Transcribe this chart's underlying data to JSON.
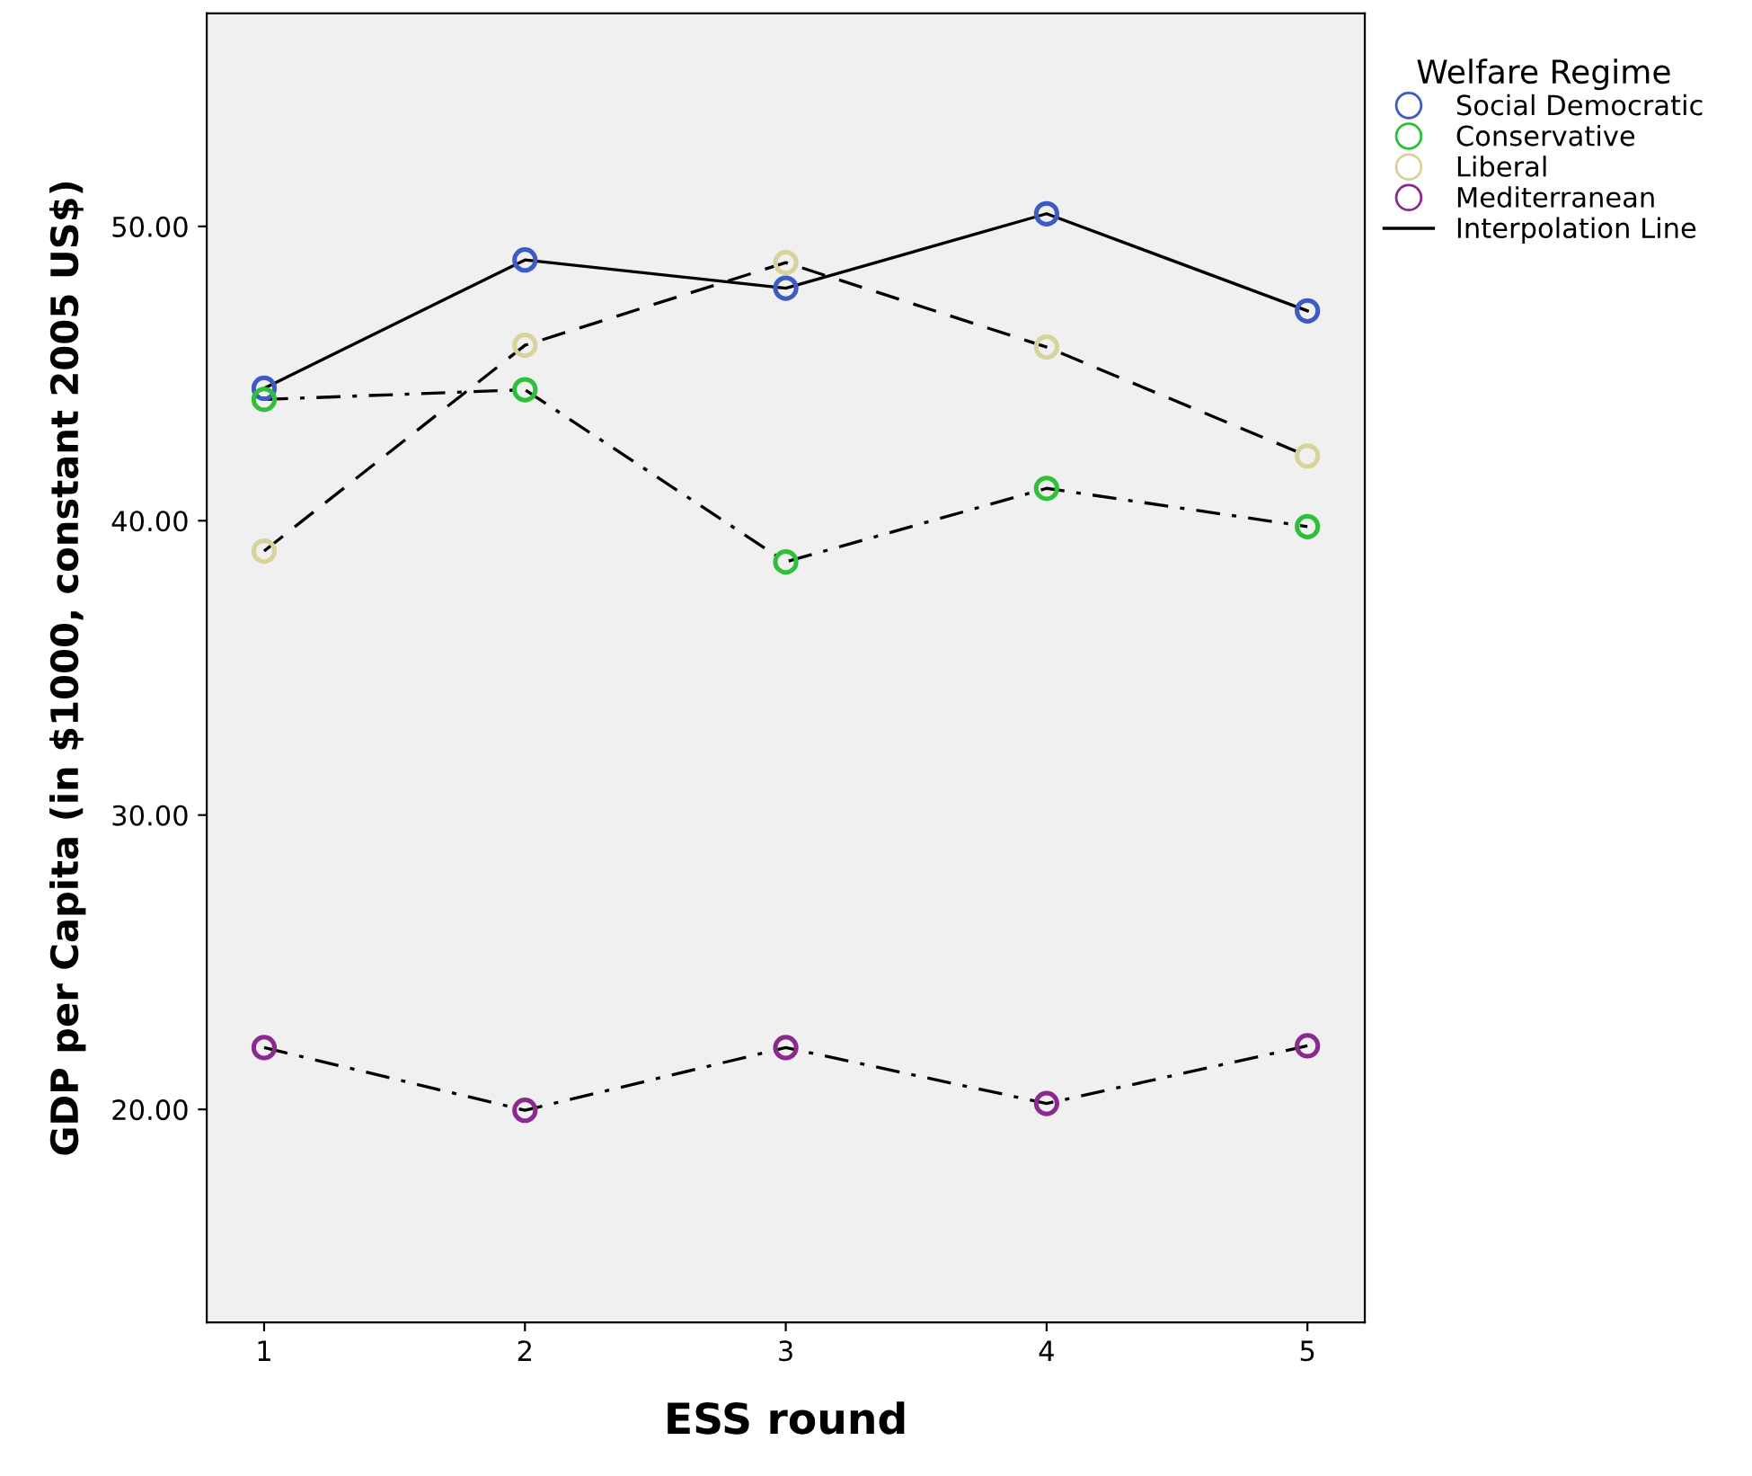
{
  "chart_data": {
    "type": "line",
    "xlabel": "ESS round",
    "ylabel": "GDP per Capita (in $1000, constant 2005 US$)",
    "legend_title": "Welfare Regime",
    "x": [
      1,
      2,
      3,
      4,
      5
    ],
    "series": [
      {
        "name": "Social Democratic",
        "color": "#3d5bc4",
        "line_style": "solid",
        "values": [
          44.5,
          48.86,
          47.9,
          50.43,
          47.13
        ]
      },
      {
        "name": "Conservative",
        "color": "#2fbf3a",
        "line_style": "dashdot",
        "values": [
          44.12,
          44.45,
          38.6,
          41.1,
          39.8
        ]
      },
      {
        "name": "Liberal",
        "color": "#d8d39a",
        "line_style": "dashed",
        "values": [
          38.97,
          45.96,
          48.77,
          45.9,
          42.2
        ]
      },
      {
        "name": "Mediterranean",
        "color": "#8b2a8e",
        "line_style": "dashdot",
        "values": [
          22.1,
          19.97,
          22.1,
          20.2,
          22.16
        ]
      }
    ],
    "annotations": [
      "Interpolation Line"
    ],
    "marker": "circle",
    "legend": "top right",
    "grid": false,
    "xlim": [
      0.78,
      5.22
    ],
    "xticks": [
      1,
      2,
      3,
      4,
      5
    ],
    "ylim": [
      12.76,
      57.24
    ],
    "yticks": [
      {
        "value": 20,
        "label": "20.00"
      },
      {
        "value": 30,
        "label": "30.00"
      },
      {
        "value": 40,
        "label": "40.00"
      },
      {
        "value": 50,
        "label": "50.00"
      }
    ]
  }
}
